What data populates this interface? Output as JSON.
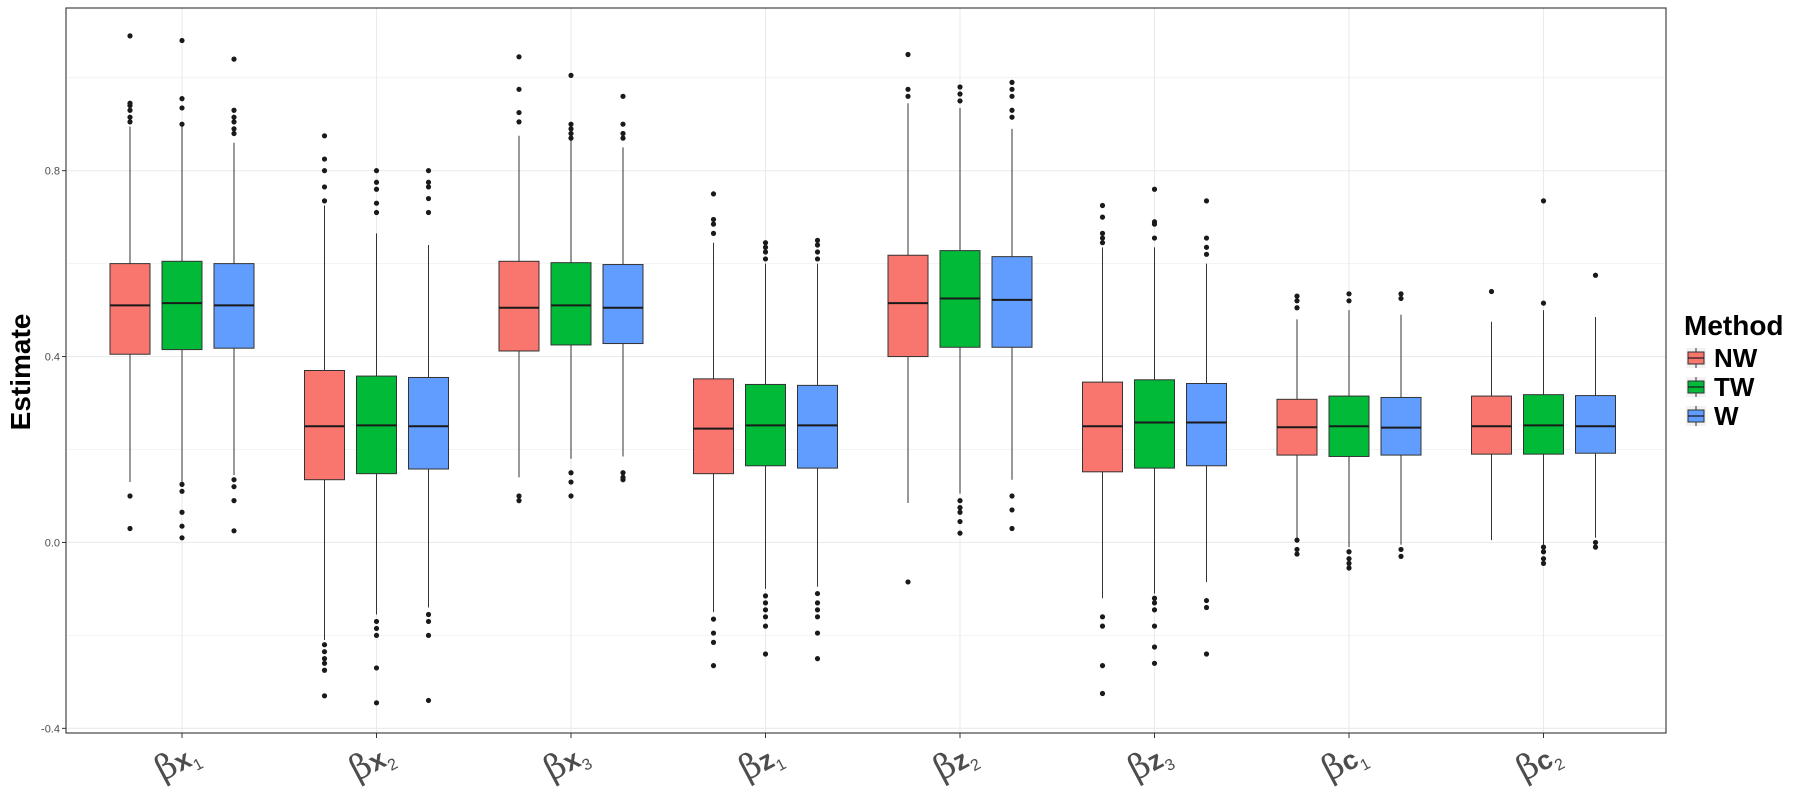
{
  "chart_data": {
    "type": "box",
    "ylabel": "Estimate",
    "ylim": [
      -0.41,
      1.15
    ],
    "yticks": [
      -0.4,
      0.0,
      0.4,
      0.8
    ],
    "ytick_labels": [
      "-0.4",
      "0.0",
      "0.4",
      "0.8"
    ],
    "grid": true,
    "legend": {
      "title": "Method",
      "position": "right"
    },
    "categories": [
      {
        "symbol": "β",
        "var": "x",
        "sub": "1"
      },
      {
        "symbol": "β",
        "var": "x",
        "sub": "2"
      },
      {
        "symbol": "β",
        "var": "x",
        "sub": "3"
      },
      {
        "symbol": "β",
        "var": "z",
        "sub": "1"
      },
      {
        "symbol": "β",
        "var": "z",
        "sub": "2"
      },
      {
        "symbol": "β",
        "var": "z",
        "sub": "3"
      },
      {
        "symbol": "β",
        "var": "c",
        "sub": "1"
      },
      {
        "symbol": "β",
        "var": "c",
        "sub": "2"
      }
    ],
    "series": [
      {
        "name": "NW",
        "color": "#F8766D",
        "boxes": [
          {
            "whislo": 0.13,
            "q1": 0.405,
            "med": 0.51,
            "q3": 0.6,
            "whishi": 0.895,
            "fliers": [
              0.03,
              0.1,
              0.905,
              0.915,
              0.93,
              0.94,
              0.945,
              1.09
            ]
          },
          {
            "whislo": -0.21,
            "q1": 0.135,
            "med": 0.25,
            "q3": 0.37,
            "whishi": 0.725,
            "fliers": [
              -0.33,
              -0.275,
              -0.26,
              -0.25,
              -0.235,
              -0.22,
              0.735,
              0.765,
              0.8,
              0.825,
              0.875
            ]
          },
          {
            "whislo": 0.14,
            "q1": 0.412,
            "med": 0.505,
            "q3": 0.605,
            "whishi": 0.875,
            "fliers": [
              0.09,
              0.1,
              0.905,
              0.925,
              0.975,
              1.045
            ]
          },
          {
            "whislo": -0.15,
            "q1": 0.148,
            "med": 0.245,
            "q3": 0.352,
            "whishi": 0.645,
            "fliers": [
              -0.265,
              -0.215,
              -0.195,
              -0.165,
              0.665,
              0.685,
              0.695,
              0.75
            ]
          },
          {
            "whislo": 0.085,
            "q1": 0.4,
            "med": 0.515,
            "q3": 0.618,
            "whishi": 0.945,
            "fliers": [
              -0.085,
              0.96,
              0.975,
              1.05
            ]
          },
          {
            "whislo": -0.12,
            "q1": 0.152,
            "med": 0.25,
            "q3": 0.345,
            "whishi": 0.635,
            "fliers": [
              -0.325,
              -0.265,
              -0.18,
              -0.16,
              0.645,
              0.655,
              0.665,
              0.7,
              0.725
            ]
          },
          {
            "whislo": 0.01,
            "q1": 0.188,
            "med": 0.248,
            "q3": 0.308,
            "whishi": 0.48,
            "fliers": [
              -0.025,
              -0.015,
              0.005,
              0.505,
              0.52,
              0.53
            ]
          },
          {
            "whislo": 0.005,
            "q1": 0.19,
            "med": 0.25,
            "q3": 0.315,
            "whishi": 0.475,
            "fliers": [
              0.54
            ]
          }
        ]
      },
      {
        "name": "TW",
        "color": "#00BA38",
        "boxes": [
          {
            "whislo": 0.125,
            "q1": 0.415,
            "med": 0.515,
            "q3": 0.605,
            "whishi": 0.895,
            "fliers": [
              0.01,
              0.035,
              0.065,
              0.11,
              0.125,
              0.9,
              0.935,
              0.955,
              1.08
            ]
          },
          {
            "whislo": -0.155,
            "q1": 0.148,
            "med": 0.252,
            "q3": 0.358,
            "whishi": 0.665,
            "fliers": [
              -0.345,
              -0.27,
              -0.2,
              -0.185,
              -0.17,
              0.71,
              0.73,
              0.76,
              0.775,
              0.8
            ]
          },
          {
            "whislo": 0.18,
            "q1": 0.425,
            "med": 0.51,
            "q3": 0.602,
            "whishi": 0.865,
            "fliers": [
              0.1,
              0.13,
              0.15,
              0.87,
              0.88,
              0.89,
              0.9,
              1.005
            ]
          },
          {
            "whislo": -0.1,
            "q1": 0.165,
            "med": 0.252,
            "q3": 0.34,
            "whishi": 0.6,
            "fliers": [
              -0.24,
              -0.18,
              -0.16,
              -0.145,
              -0.13,
              -0.115,
              0.61,
              0.625,
              0.635,
              0.645
            ]
          },
          {
            "whislo": 0.105,
            "q1": 0.42,
            "med": 0.525,
            "q3": 0.628,
            "whishi": 0.935,
            "fliers": [
              0.02,
              0.045,
              0.065,
              0.075,
              0.09,
              0.95,
              0.965,
              0.98
            ]
          },
          {
            "whislo": -0.11,
            "q1": 0.16,
            "med": 0.258,
            "q3": 0.35,
            "whishi": 0.635,
            "fliers": [
              -0.26,
              -0.225,
              -0.18,
              -0.145,
              -0.13,
              -0.12,
              0.655,
              0.685,
              0.69,
              0.76
            ]
          },
          {
            "whislo": -0.01,
            "q1": 0.185,
            "med": 0.25,
            "q3": 0.315,
            "whishi": 0.5,
            "fliers": [
              -0.055,
              -0.045,
              -0.035,
              -0.02,
              0.52,
              0.535
            ]
          },
          {
            "whislo": -0.005,
            "q1": 0.19,
            "med": 0.252,
            "q3": 0.318,
            "whishi": 0.5,
            "fliers": [
              -0.045,
              -0.035,
              -0.02,
              -0.01,
              0.515,
              0.735
            ]
          }
        ]
      },
      {
        "name": "W",
        "color": "#619CFF",
        "boxes": [
          {
            "whislo": 0.145,
            "q1": 0.418,
            "med": 0.51,
            "q3": 0.6,
            "whishi": 0.86,
            "fliers": [
              0.025,
              0.09,
              0.12,
              0.135,
              0.88,
              0.89,
              0.905,
              0.915,
              0.93,
              1.04
            ]
          },
          {
            "whislo": -0.14,
            "q1": 0.158,
            "med": 0.25,
            "q3": 0.355,
            "whishi": 0.64,
            "fliers": [
              -0.34,
              -0.2,
              -0.17,
              -0.155,
              0.71,
              0.74,
              0.765,
              0.775,
              0.8
            ]
          },
          {
            "whislo": 0.185,
            "q1": 0.428,
            "med": 0.505,
            "q3": 0.598,
            "whishi": 0.85,
            "fliers": [
              0.135,
              0.14,
              0.15,
              0.87,
              0.88,
              0.9,
              0.96
            ]
          },
          {
            "whislo": -0.095,
            "q1": 0.16,
            "med": 0.252,
            "q3": 0.338,
            "whishi": 0.6,
            "fliers": [
              -0.25,
              -0.195,
              -0.16,
              -0.145,
              -0.13,
              -0.11,
              0.61,
              0.625,
              0.64,
              0.65
            ]
          },
          {
            "whislo": 0.135,
            "q1": 0.42,
            "med": 0.522,
            "q3": 0.615,
            "whishi": 0.89,
            "fliers": [
              0.03,
              0.07,
              0.1,
              0.915,
              0.93,
              0.96,
              0.975,
              0.99
            ]
          },
          {
            "whislo": -0.085,
            "q1": 0.165,
            "med": 0.258,
            "q3": 0.342,
            "whishi": 0.6,
            "fliers": [
              -0.24,
              -0.14,
              -0.125,
              0.62,
              0.635,
              0.655,
              0.735
            ]
          },
          {
            "whislo": -0.005,
            "q1": 0.188,
            "med": 0.247,
            "q3": 0.312,
            "whishi": 0.49,
            "fliers": [
              -0.03,
              -0.015,
              0.525,
              0.535
            ]
          },
          {
            "whislo": 0.01,
            "q1": 0.192,
            "med": 0.25,
            "q3": 0.316,
            "whishi": 0.485,
            "fliers": [
              -0.01,
              0.0,
              0.575
            ]
          }
        ]
      }
    ]
  }
}
